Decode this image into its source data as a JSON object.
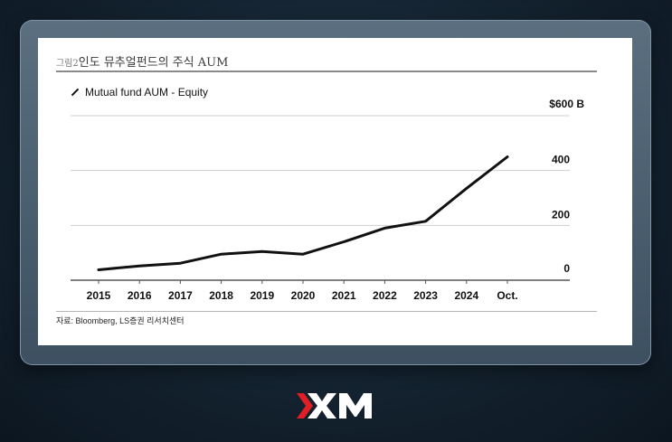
{
  "figure": {
    "number": "그림2",
    "title": "인도 뮤추얼펀드의 주식 AUM",
    "source": "자료: Bloomberg, LS증권 리서치센터"
  },
  "brand": {
    "logo_text": "XM",
    "accent": "#e01e25"
  },
  "chart_data": {
    "type": "line",
    "title": "",
    "legend": "Mutual fund AUM - Equity",
    "categories": [
      "2015",
      "2016",
      "2017",
      "2018",
      "2019",
      "2020",
      "2021",
      "2022",
      "2023",
      "2024",
      "Oct."
    ],
    "series": [
      {
        "name": "Mutual fund AUM - Equity",
        "values": [
          38,
          52,
          62,
          95,
          105,
          95,
          140,
          190,
          215,
          335,
          450
        ]
      }
    ],
    "ylim": [
      0,
      600
    ],
    "yticks": [
      0,
      200,
      400,
      600
    ],
    "ytick_labels": [
      "0",
      "200",
      "400",
      "$600 B"
    ],
    "y_axis_side": "right",
    "grid": true,
    "line_color": "#111111"
  }
}
